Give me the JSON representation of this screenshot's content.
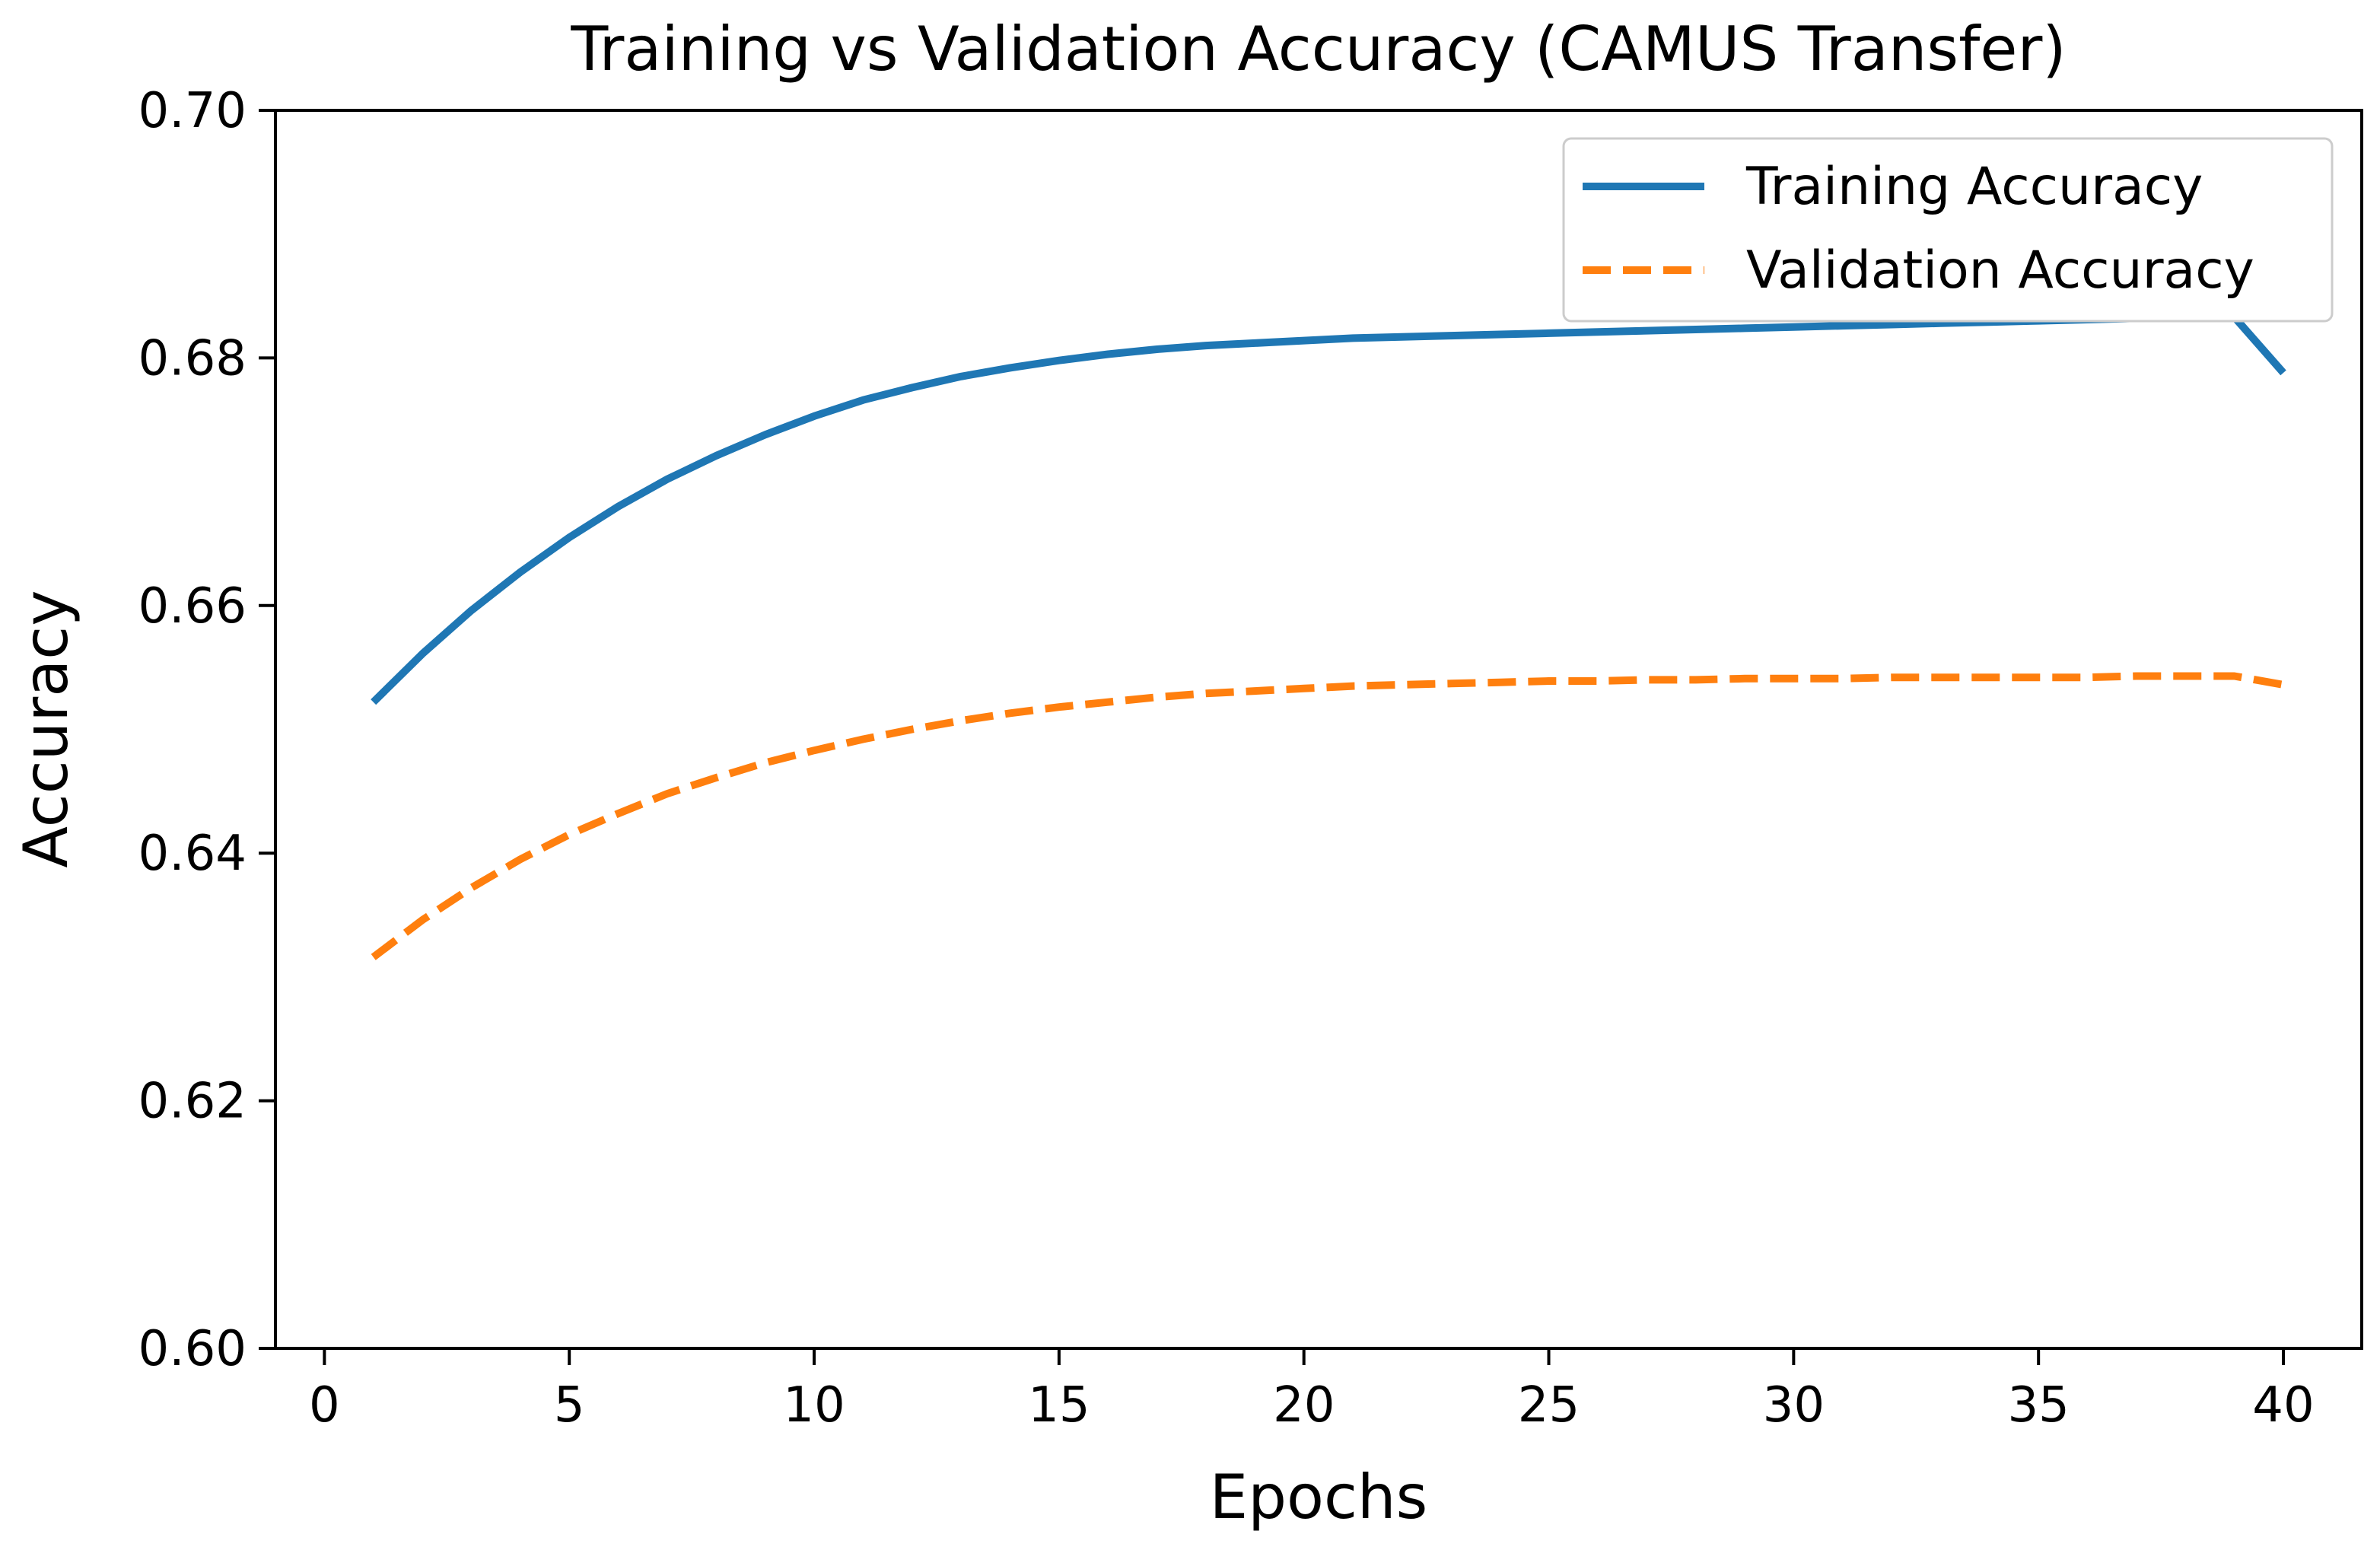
{
  "chart_data": {
    "type": "line",
    "title": "Training vs Validation Accuracy (CAMUS Transfer)",
    "xlabel": "Epochs",
    "ylabel": "Accuracy",
    "xlim": [
      -1,
      41.6
    ],
    "ylim": [
      0.6,
      0.7
    ],
    "xticks": [
      0,
      5,
      10,
      15,
      20,
      25,
      30,
      35,
      40
    ],
    "yticks": [
      0.6,
      0.62,
      0.64,
      0.66,
      0.68,
      0.7
    ],
    "xtick_labels": [
      "0",
      "5",
      "10",
      "15",
      "20",
      "25",
      "30",
      "35",
      "40"
    ],
    "ytick_labels": [
      "0.60",
      "0.62",
      "0.64",
      "0.66",
      "0.68",
      "0.70"
    ],
    "grid": false,
    "legend_position": "top-right",
    "x": [
      1,
      2,
      3,
      4,
      5,
      6,
      7,
      8,
      9,
      10,
      11,
      12,
      13,
      14,
      15,
      16,
      17,
      18,
      19,
      20,
      21,
      22,
      23,
      24,
      25,
      26,
      27,
      28,
      29,
      30,
      31,
      32,
      33,
      34,
      35,
      36,
      37,
      38,
      39,
      40
    ],
    "series": [
      {
        "name": "Training Accuracy",
        "color": "#1f77b4",
        "style": "solid",
        "values": [
          0.6522,
          0.6561,
          0.6596,
          0.6627,
          0.6655,
          0.668,
          0.6702,
          0.6721,
          0.6738,
          0.6753,
          0.6766,
          0.6776,
          0.6785,
          0.6792,
          0.6798,
          0.6803,
          0.6807,
          0.681,
          0.6812,
          0.6814,
          0.6816,
          0.6817,
          0.6818,
          0.6819,
          0.682,
          0.6821,
          0.6822,
          0.6823,
          0.6824,
          0.6825,
          0.6826,
          0.6827,
          0.6828,
          0.6829,
          0.683,
          0.6831,
          0.6832,
          0.6833,
          0.6833,
          0.6788
        ]
      },
      {
        "name": "Validation Accuracy",
        "color": "#ff7f0e",
        "style": "dashed",
        "values": [
          0.6316,
          0.6346,
          0.6372,
          0.6395,
          0.6415,
          0.6432,
          0.6448,
          0.6461,
          0.6473,
          0.6483,
          0.6492,
          0.65,
          0.6507,
          0.6513,
          0.6518,
          0.6522,
          0.6526,
          0.6529,
          0.6531,
          0.6533,
          0.6535,
          0.6536,
          0.6537,
          0.6538,
          0.6539,
          0.6539,
          0.654,
          0.654,
          0.6541,
          0.6541,
          0.6541,
          0.6542,
          0.6542,
          0.6542,
          0.6542,
          0.6542,
          0.6543,
          0.6543,
          0.6543,
          0.6536
        ]
      }
    ]
  }
}
